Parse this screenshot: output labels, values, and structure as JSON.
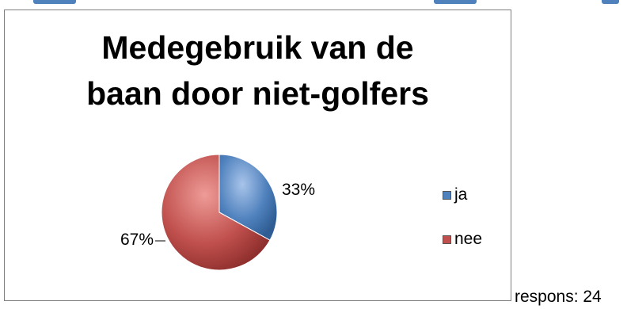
{
  "chart_data": {
    "type": "pie",
    "title_lines": [
      "Medegebruik van de",
      "baan door niet-golfers"
    ],
    "categories": [
      "ja",
      "nee"
    ],
    "values": [
      33,
      67
    ],
    "labels": [
      "33%",
      "67%"
    ],
    "colors": [
      "#4f81bd",
      "#c0504d"
    ],
    "legend_position": "right"
  },
  "footnote": "respons: 24"
}
